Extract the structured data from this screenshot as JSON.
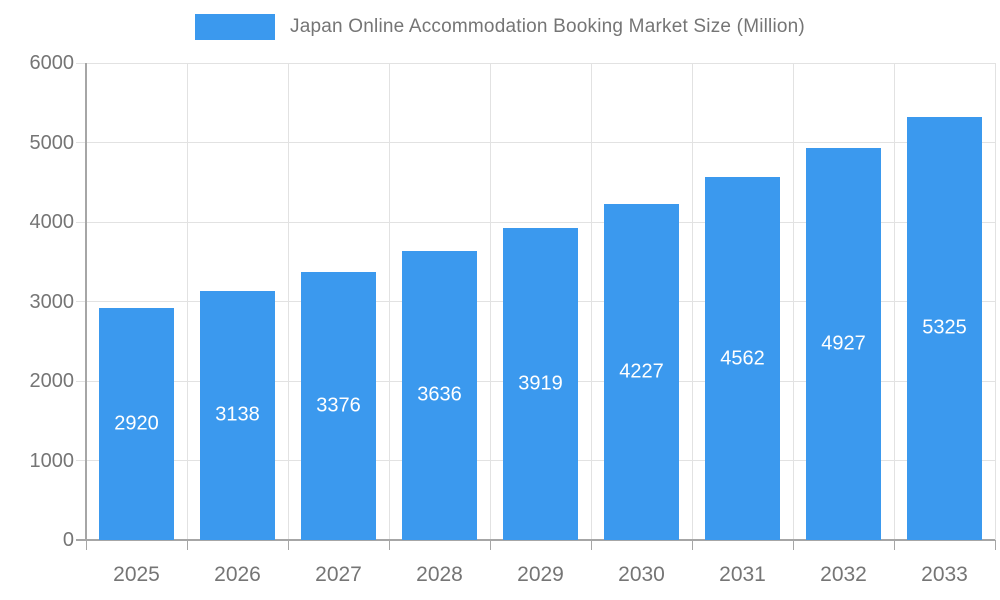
{
  "legend": {
    "label": "Japan Online Accommodation Booking Market Size (Million)"
  },
  "chart_data": {
    "type": "bar",
    "title": "Japan Online Accommodation Booking Market Size (Million)",
    "categories": [
      "2025",
      "2026",
      "2027",
      "2028",
      "2029",
      "2030",
      "2031",
      "2032",
      "2033"
    ],
    "values": [
      2920,
      3138,
      3376,
      3636,
      3919,
      4227,
      4562,
      4927,
      5325
    ],
    "xlabel": "",
    "ylabel": "",
    "ylim": [
      0,
      6000
    ],
    "ytick_step": 1000,
    "ytick_labels": [
      "0",
      "1000",
      "2000",
      "3000",
      "4000",
      "5000",
      "6000"
    ],
    "grid": true,
    "legend_position": "top",
    "value_labels": "inside-center",
    "colors": {
      "bar": "#3b99ee",
      "value_label": "#ffffff",
      "axis_text": "#757575",
      "gridline": "#e2e2e2",
      "axis_line": "#a6a6a6",
      "background": "#ffffff"
    }
  }
}
